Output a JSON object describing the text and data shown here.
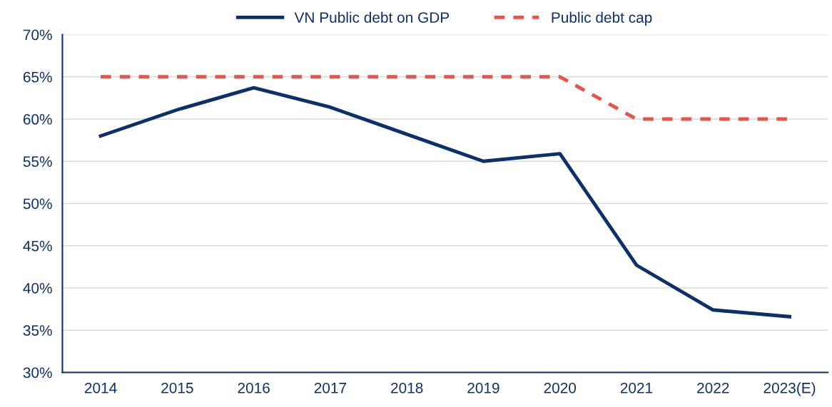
{
  "chart_data": {
    "type": "line",
    "categories": [
      "2014",
      "2015",
      "2016",
      "2017",
      "2018",
      "2019",
      "2020",
      "2021",
      "2022",
      "2023(E)"
    ],
    "series": [
      {
        "name": "VN Public debt on GDP",
        "color": "#0d2f6b",
        "line_style": "solid",
        "values": [
          58.0,
          61.1,
          63.7,
          61.4,
          58.2,
          55.0,
          55.9,
          42.7,
          37.4,
          36.6
        ]
      },
      {
        "name": "Public debt cap",
        "color": "#e8534a",
        "line_style": "dashed",
        "values": [
          65,
          65,
          65,
          65,
          65,
          65,
          65,
          60,
          60,
          60
        ]
      }
    ],
    "ylim": [
      30,
      70
    ],
    "yticks": [
      {
        "value": 30,
        "label": "30%"
      },
      {
        "value": 35,
        "label": "35%"
      },
      {
        "value": 40,
        "label": "40%"
      },
      {
        "value": 45,
        "label": "45%"
      },
      {
        "value": 50,
        "label": "50%"
      },
      {
        "value": 55,
        "label": "55%"
      },
      {
        "value": 60,
        "label": "60%"
      },
      {
        "value": 65,
        "label": "65%"
      },
      {
        "value": 70,
        "label": "70%"
      }
    ],
    "grid": "y",
    "legend": "top",
    "marker": "none"
  }
}
